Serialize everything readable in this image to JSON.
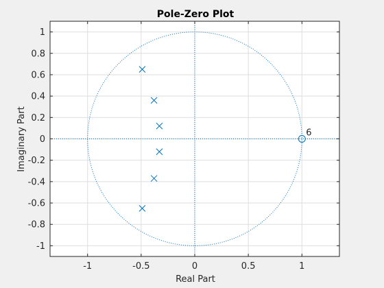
{
  "chart_data": {
    "type": "scatter",
    "title": "Pole-Zero Plot",
    "xlabel": "Real Part",
    "ylabel": "Imaginary Part",
    "xlim": [
      -1.35,
      1.35
    ],
    "ylim": [
      -1.1,
      1.1
    ],
    "xticks": [
      -1,
      -0.5,
      0,
      0.5,
      1
    ],
    "xtick_labels": [
      "-1",
      "-0.5",
      "0",
      "0.5",
      "1"
    ],
    "yticks": [
      -1,
      -0.8,
      -0.6,
      -0.4,
      -0.2,
      0,
      0.2,
      0.4,
      0.6,
      0.8,
      1
    ],
    "ytick_labels": [
      "-1",
      "-0.8",
      "-0.6",
      "-0.4",
      "-0.2",
      "0",
      "0.2",
      "0.4",
      "0.6",
      "0.8",
      "1"
    ],
    "grid": true,
    "unit_circle": true,
    "poles": [
      {
        "re": -0.49,
        "im": 0.65
      },
      {
        "re": -0.38,
        "im": 0.36
      },
      {
        "re": -0.33,
        "im": 0.12
      },
      {
        "re": -0.33,
        "im": -0.12
      },
      {
        "re": -0.38,
        "im": -0.37
      },
      {
        "re": -0.49,
        "im": -0.65
      }
    ],
    "zeros": [
      {
        "re": 1.0,
        "im": 0.0,
        "multiplicity_label": "6"
      }
    ],
    "colors": {
      "marker": "#0072bd",
      "axis": "#262626",
      "grid": "#dedede",
      "plot_bg": "#ffffff",
      "figure_bg": "#f0f0f0"
    }
  }
}
